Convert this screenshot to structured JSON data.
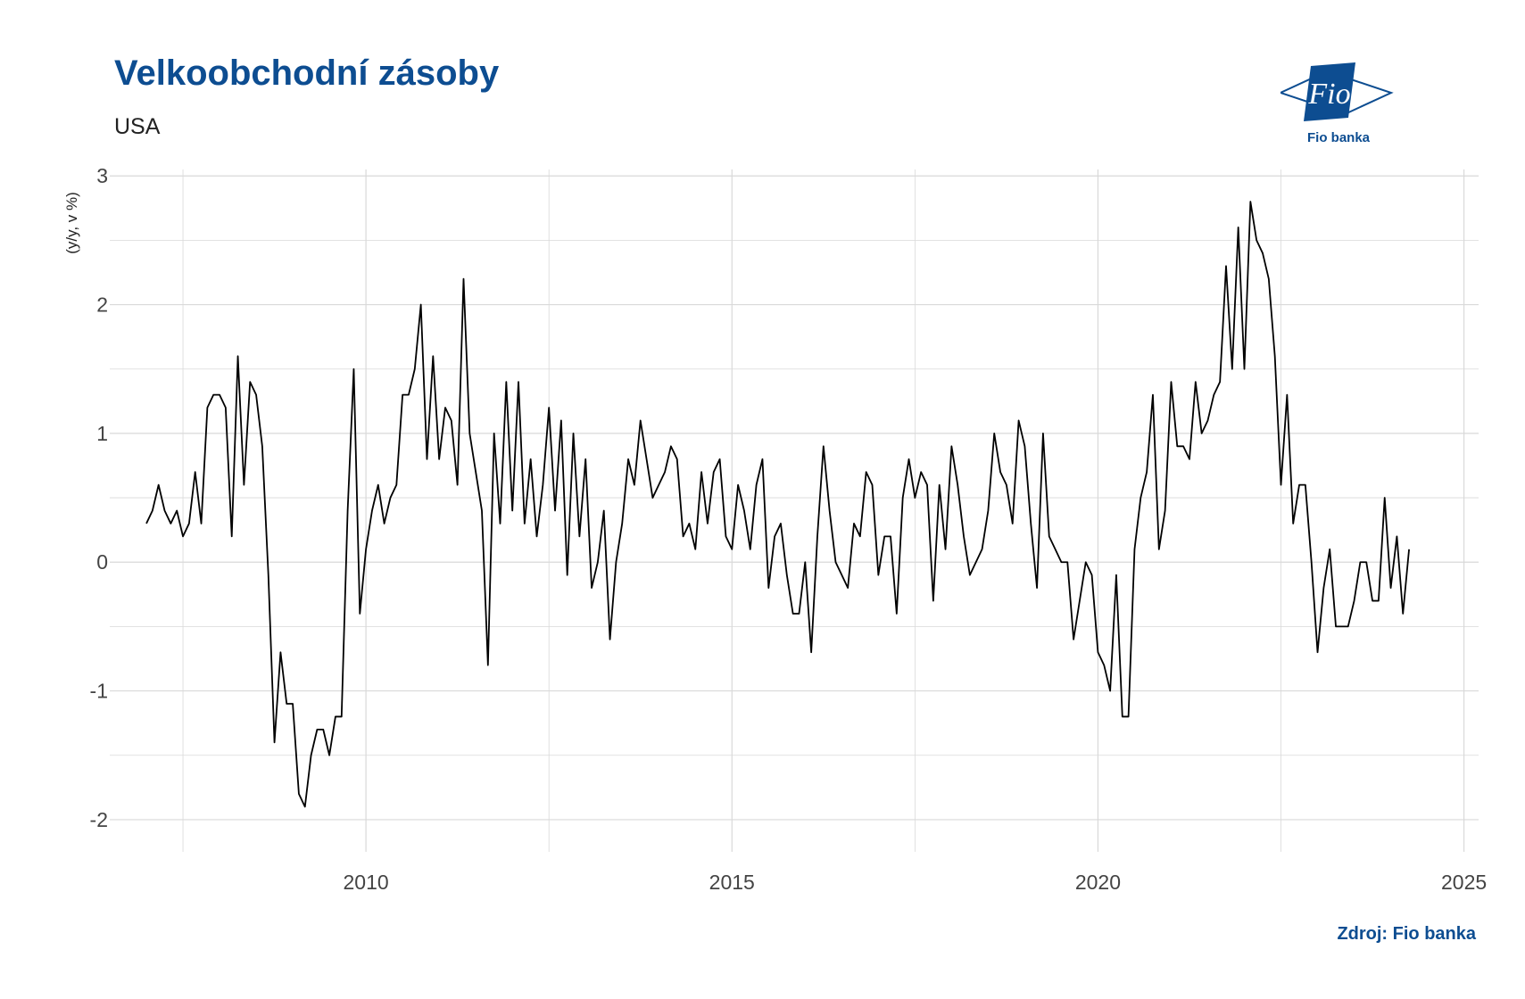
{
  "title": "Velkoobchodní zásoby",
  "subtitle": "USA",
  "source": "Zdroj: Fio banka",
  "logo": {
    "text": "Fio",
    "caption": "Fio banka",
    "color": "#0d4d91"
  },
  "colors": {
    "title": "#0d4d91",
    "grid": "#d9d9d9",
    "line": "#000000"
  },
  "chart_data": {
    "type": "line",
    "ylabel": "(y/y, v %)",
    "xlabel": "",
    "xlim": [
      2006.5,
      2025.2
    ],
    "ylim": [
      -2.25,
      3.05
    ],
    "x_ticks": [
      2010,
      2015,
      2020,
      2025
    ],
    "y_ticks": [
      -2,
      -1,
      0,
      1,
      2,
      3
    ],
    "grid": true,
    "legend": "none",
    "series": [
      {
        "start": "2007-01",
        "frequency": "monthly",
        "values": [
          0.3,
          0.4,
          0.6,
          0.4,
          0.3,
          0.4,
          0.2,
          0.3,
          0.7,
          0.3,
          1.2,
          1.3,
          1.3,
          1.2,
          0.2,
          1.6,
          0.6,
          1.4,
          1.3,
          0.9,
          -0.1,
          -1.4,
          -0.7,
          -1.1,
          -1.1,
          -1.8,
          -1.9,
          -1.5,
          -1.3,
          -1.3,
          -1.5,
          -1.2,
          -1.2,
          0.4,
          1.5,
          -0.4,
          0.1,
          0.4,
          0.6,
          0.3,
          0.5,
          0.6,
          1.3,
          1.3,
          1.5,
          2.0,
          0.8,
          1.6,
          0.8,
          1.2,
          1.1,
          0.6,
          2.2,
          1.0,
          0.7,
          0.4,
          -0.8,
          1.0,
          0.3,
          1.4,
          0.4,
          1.4,
          0.3,
          0.8,
          0.2,
          0.6,
          1.2,
          0.4,
          1.1,
          -0.1,
          1.0,
          0.2,
          0.8,
          -0.2,
          0.0,
          0.4,
          -0.6,
          0.0,
          0.3,
          0.8,
          0.6,
          1.1,
          0.8,
          0.5,
          0.6,
          0.7,
          0.9,
          0.8,
          0.2,
          0.3,
          0.1,
          0.7,
          0.3,
          0.7,
          0.8,
          0.2,
          0.1,
          0.6,
          0.4,
          0.1,
          0.6,
          0.8,
          -0.2,
          0.2,
          0.3,
          -0.1,
          -0.4,
          -0.4,
          0.0,
          -0.7,
          0.2,
          0.9,
          0.4,
          0.0,
          -0.1,
          -0.2,
          0.3,
          0.2,
          0.7,
          0.6,
          -0.1,
          0.2,
          0.2,
          -0.4,
          0.5,
          0.8,
          0.5,
          0.7,
          0.6,
          -0.3,
          0.6,
          0.1,
          0.9,
          0.6,
          0.2,
          -0.1,
          0.0,
          0.1,
          0.4,
          1.0,
          0.7,
          0.6,
          0.3,
          1.1,
          0.9,
          0.3,
          -0.2,
          1.0,
          0.2,
          0.1,
          0.0,
          0.0,
          -0.6,
          -0.3,
          0.0,
          -0.1,
          -0.7,
          -0.8,
          -1.0,
          -0.1,
          -1.2,
          -1.2,
          0.1,
          0.5,
          0.7,
          1.3,
          0.1,
          0.4,
          1.4,
          0.9,
          0.9,
          0.8,
          1.4,
          1.0,
          1.1,
          1.3,
          1.4,
          2.3,
          1.5,
          2.6,
          1.5,
          2.8,
          2.5,
          2.4,
          2.2,
          1.6,
          0.6,
          1.3,
          0.3,
          0.6,
          0.6,
          0.0,
          -0.7,
          -0.2,
          0.1,
          -0.5,
          -0.5,
          -0.5,
          -0.3,
          0.0,
          0.0,
          -0.3,
          -0.3,
          0.5,
          -0.2,
          0.2,
          -0.4,
          0.1
        ]
      }
    ]
  }
}
